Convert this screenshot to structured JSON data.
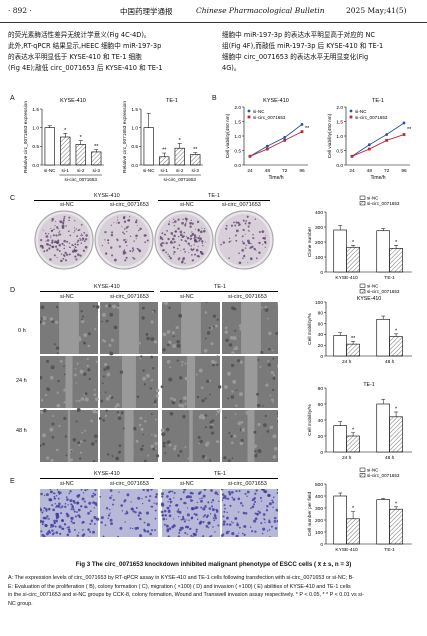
{
  "header": {
    "page_number": "· 892 ·",
    "journal_cn": "中国药理学通报",
    "journal_en": "Chinese Pharmacological Bulletin",
    "issue": "2025 May;41(5)"
  },
  "body_text": {
    "left_lines": [
      "的荧光素酶活性差异无统计学意义(Fig 4C-4D)。",
      "此外,RT-qPCR 结果显示,HEEC 细胞中 miR-197-3p",
      "的表达水平明显低于 KYSE-410 和 TE-1 细胞",
      "(Fig 4E);敲低 circ_0071653 后 KYSE-410 和 TE-1"
    ],
    "right_lines": [
      "细胞中 miR-197-3p 的表达水平明显高于对应的 NC",
      "组(Fig 4F),而敲低 miR-197-3p 后 KYSE-410 和 TE-1",
      "细胞中 circ_0071653 的表达水平无明显变化(Fig",
      "4G)。"
    ]
  },
  "panels": {
    "A": "A",
    "B": "B",
    "C": "C",
    "D": "D",
    "E": "E"
  },
  "cell_lines": {
    "kyse": "KYSE-410",
    "te1": "TE-1"
  },
  "groups": {
    "nc": "si-NC",
    "si": "si-circ_0071653"
  },
  "labels": {
    "si_circ_multi": "si-circ_0071653",
    "sig1": "*",
    "sig2": "**",
    "time_0": "0 h",
    "time_24": "24 h",
    "time_48": "48 h"
  },
  "chart_data": [
    {
      "id": "A-KYSE-410",
      "type": "bar",
      "title": "KYSE-410",
      "ylabel": "Relative circ_0071653 expression",
      "categories": [
        "si-NC",
        "si-1",
        "si-2",
        "si-3"
      ],
      "values": [
        1.0,
        0.75,
        0.55,
        0.35
      ],
      "errors": [
        0.05,
        0.1,
        0.1,
        0.06
      ],
      "significance": [
        "",
        "*",
        "*",
        "**"
      ],
      "ylim": [
        0,
        1.5
      ],
      "yticks": [
        "0.0",
        "0.5",
        "1.0",
        "1.5"
      ],
      "group_label": "si-circ_0071653"
    },
    {
      "id": "A-TE-1",
      "type": "bar",
      "title": "TE-1",
      "ylabel": "Relative circ_0071653 expression",
      "categories": [
        "si-NC",
        "si-1",
        "si-2",
        "si-3"
      ],
      "values": [
        1.0,
        0.22,
        0.45,
        0.28
      ],
      "errors": [
        0.38,
        0.1,
        0.13,
        0.05
      ],
      "significance": [
        "",
        "**",
        "*",
        "**"
      ],
      "ylim": [
        0,
        1.5
      ],
      "yticks": [
        "0.0",
        "0.5",
        "1.0",
        "1.5"
      ],
      "group_label": "si-circ_0071653"
    },
    {
      "id": "B-KYSE-410",
      "type": "line",
      "title": "KYSE-410",
      "xlabel": "Time/h",
      "ylabel": "Cell viability(450 nm)",
      "x": [
        24,
        48,
        72,
        96
      ],
      "series": [
        {
          "name": "si-NC",
          "values": [
            0.3,
            0.65,
            0.95,
            1.4
          ]
        },
        {
          "name": "si-circ_0071653",
          "values": [
            0.3,
            0.55,
            0.85,
            1.15
          ]
        }
      ],
      "significance": "**",
      "ylim": [
        0,
        2.0
      ],
      "yticks": [
        "0.0",
        "0.5",
        "1.0",
        "1.5",
        "2.0"
      ]
    },
    {
      "id": "B-TE-1",
      "type": "line",
      "title": "TE-1",
      "xlabel": "Time/h",
      "ylabel": "Cell viability(450 nm)",
      "x": [
        24,
        48,
        72,
        96
      ],
      "series": [
        {
          "name": "si-NC",
          "values": [
            0.3,
            0.7,
            1.05,
            1.45
          ]
        },
        {
          "name": "si-circ_0071653",
          "values": [
            0.3,
            0.55,
            0.85,
            1.05
          ]
        }
      ],
      "significance": "**",
      "ylim": [
        0,
        2.0
      ],
      "yticks": [
        "0.0",
        "0.5",
        "1.0",
        "1.5",
        "2.0"
      ]
    },
    {
      "id": "C-colony",
      "type": "bar",
      "ylabel": "Clone number",
      "categories": [
        "KYSE-410",
        "TE-1"
      ],
      "series": [
        {
          "name": "si-NC",
          "values": [
            280,
            275
          ]
        },
        {
          "name": "si-circ_0071653",
          "values": [
            165,
            158
          ]
        }
      ],
      "errors": [
        [
          30,
          15
        ],
        [
          12,
          20
        ]
      ],
      "significance": [
        "*",
        "*"
      ],
      "ylim": [
        0,
        400
      ],
      "yticks": [
        "0",
        "100",
        "200",
        "300",
        "400"
      ]
    },
    {
      "id": "D-KYSE-410",
      "type": "bar",
      "title": "KYSE-410",
      "ylabel": "Cell mobility/%",
      "categories": [
        "24 h",
        "48 h"
      ],
      "series": [
        {
          "name": "si-NC",
          "values": [
            38,
            68
          ]
        },
        {
          "name": "si-circ_0071653",
          "values": [
            22,
            36
          ]
        }
      ],
      "errors": [
        [
          5,
          6
        ],
        [
          5,
          5
        ]
      ],
      "significance": [
        "**",
        "*"
      ],
      "ylim": [
        0,
        100
      ],
      "yticks": [
        "0",
        "20",
        "40",
        "60",
        "80",
        "100"
      ]
    },
    {
      "id": "D-TE-1",
      "type": "bar",
      "title": "TE-1",
      "ylabel": "Cell mobility/%",
      "categories": [
        "24 h",
        "48 h"
      ],
      "series": [
        {
          "name": "si-NC",
          "values": [
            33,
            60
          ]
        },
        {
          "name": "si-circ_0071653",
          "values": [
            20,
            44
          ]
        }
      ],
      "errors": [
        [
          5,
          6
        ],
        [
          4,
          6
        ]
      ],
      "significance": [
        "*",
        "*"
      ],
      "ylim": [
        0,
        80
      ],
      "yticks": [
        "0",
        "20",
        "40",
        "60",
        "80"
      ]
    },
    {
      "id": "E-transwell",
      "type": "bar",
      "ylabel": "Cell number per field",
      "categories": [
        "KYSE-410",
        "TE-1"
      ],
      "series": [
        {
          "name": "si-NC",
          "values": [
            400,
            370
          ]
        },
        {
          "name": "si-circ_0071653",
          "values": [
            210,
            290
          ]
        }
      ],
      "errors": [
        [
          25,
          8
        ],
        [
          60,
          20
        ]
      ],
      "significance": [
        "*",
        "*"
      ],
      "ylim": [
        0,
        500
      ],
      "yticks": [
        "0",
        "100",
        "200",
        "300",
        "400",
        "500"
      ]
    }
  ],
  "caption": {
    "title": "Fig 3   The circ_0071653 knockdown inhibited malignant phenotype of ESCC cells ( x̄ ± s, n = 3)",
    "lines": [
      "A: The expression levels of circ_0071653 by RT-qPCR assay in KYSE-410 and TE-1 cells following transfection with si-circ_0071653 or si-NC; B-",
      "E: Evaluation of the proliferation ( B), colony formation ( C), migration ( ×100) ( D) and invasion ( ×100) ( E) abilities of KYSE-410 and TE-1 cells",
      "in the si-circ_0071653 and si-NC groups by CCK-8, colony formation, Wound and Transwell invasion assay respectively.  * P < 0.05, * * P < 0.01 vs si-",
      "NC group."
    ]
  },
  "colors": {
    "bar_fill": "#ffffff",
    "hatch": "#555555",
    "line_nc": "#2a4fa8",
    "line_si": "#c0282f",
    "colony_bg": "#d8d0d8",
    "colony_dots": "#5a3a6a",
    "wound_bg": "#7a7a7a",
    "transwell_bg": "#b8b8d8",
    "transwell_dots": "#3a3aa0"
  }
}
